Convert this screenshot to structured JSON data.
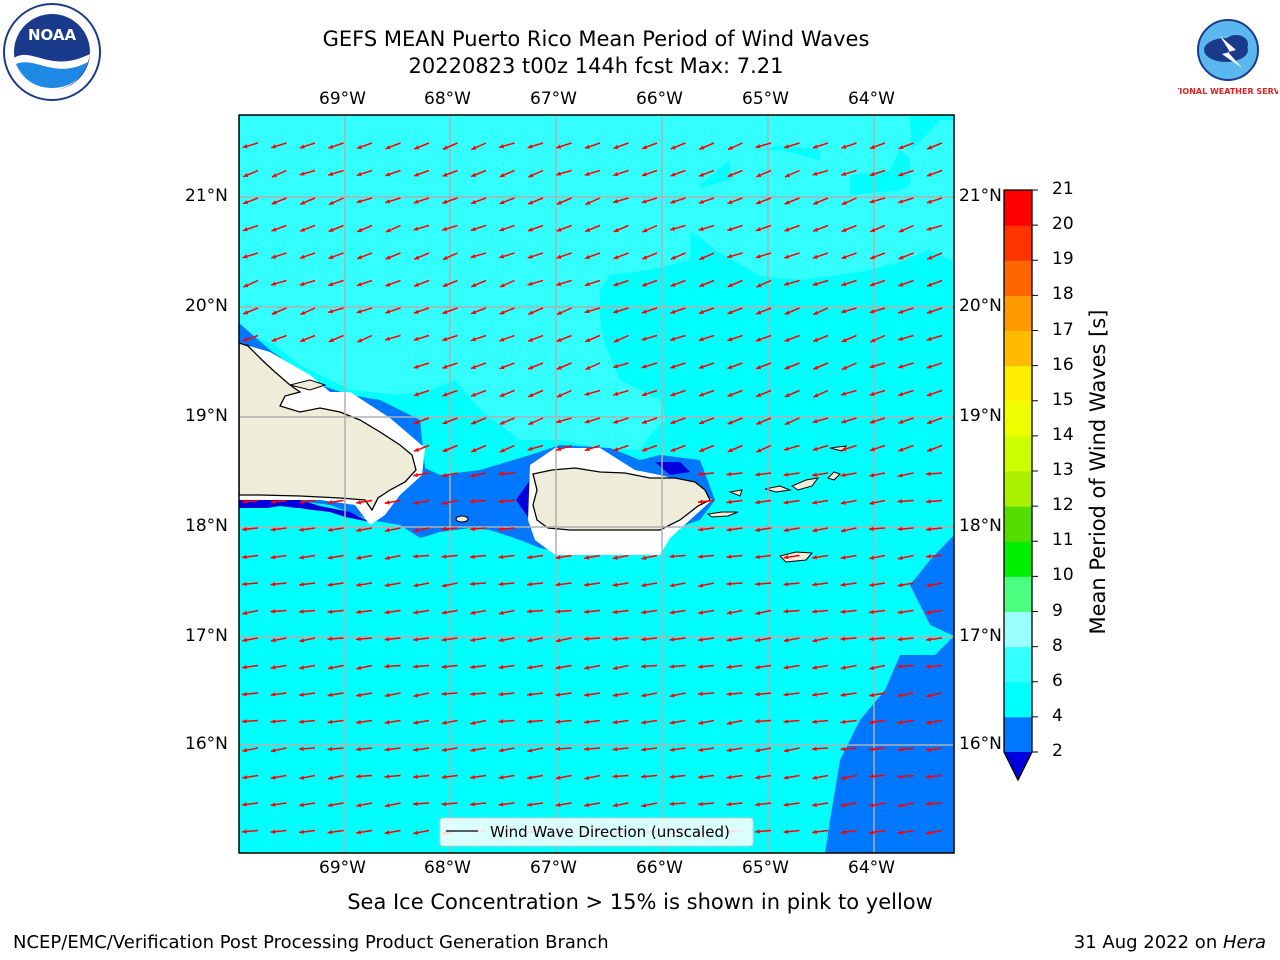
{
  "title": {
    "line1": "GEFS MEAN Puerto Rico Mean Period of Wind Waves",
    "line2": "20220823 t00z 144h fcst   Max: 7.21"
  },
  "logos": {
    "left": {
      "name": "noaa-logo",
      "text": "NOAA"
    },
    "right": {
      "name": "nws-logo",
      "text": "NATIONAL WEATHER SERVICE"
    }
  },
  "map": {
    "lon_labels": [
      "69°W",
      "68°W",
      "67°W",
      "66°W",
      "65°W",
      "64°W"
    ],
    "lat_labels": [
      "21°N",
      "20°N",
      "19°N",
      "18°N",
      "17°N",
      "16°N"
    ],
    "legend_label": "Wind Wave Direction (unscaled)",
    "land_color": "#efedda",
    "arrow_color": "#ff0000"
  },
  "colorbar": {
    "label": "Mean Period of Wind Waves [s]",
    "ticks": [
      "2",
      "4",
      "6",
      "8",
      "9",
      "10",
      "11",
      "12",
      "13",
      "14",
      "15",
      "16",
      "17",
      "18",
      "19",
      "20",
      "21"
    ],
    "colors": [
      "#0000ff",
      "#0077ff",
      "#00ffff",
      "#33ffff",
      "#99ffff",
      "#4dff80",
      "#00ee00",
      "#55dd00",
      "#aaee00",
      "#ccff00",
      "#eeff00",
      "#ffee00",
      "#ffbb00",
      "#ff9900",
      "#ff6600",
      "#ff3300",
      "#ff0000"
    ],
    "under_color": "#0000dd"
  },
  "bottom_note": "Sea Ice Concentration > 15% is shown in pink to yellow",
  "footer": {
    "left": "NCEP/EMC/Verification Post Processing Product Generation Branch",
    "right_prefix": "31 Aug 2022 on ",
    "right_host": "Hera"
  }
}
